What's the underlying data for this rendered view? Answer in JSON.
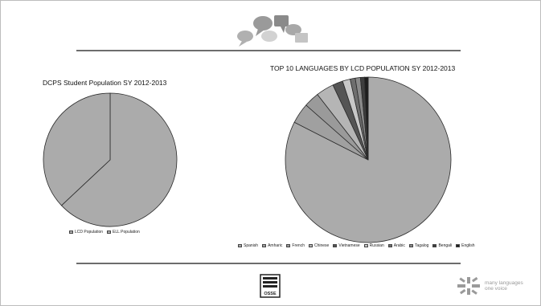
{
  "charts": {
    "chart_data": [
      {
        "type": "pie",
        "title": "DCPS Student Population SY 2012-2013",
        "categories": [
          "LCD Population",
          "ELL Population"
        ],
        "values": [
          63,
          37
        ],
        "colors": [
          "#ababab",
          "#ababab"
        ],
        "legend": "bottom"
      },
      {
        "type": "pie",
        "title": "TOP 10 LANGUAGES BY LCD POPULATION SY 2012-2013",
        "categories": [
          "Spanish",
          "Amharic",
          "French",
          "Chinese",
          "Vietnamese",
          "Russian",
          "Arabic",
          "Tagalog",
          "Bengali",
          "English"
        ],
        "values": [
          82.5,
          4.0,
          3.0,
          3.5,
          2.0,
          1.5,
          1.0,
          1.0,
          0.8,
          0.7
        ],
        "colors": [
          "#ababab",
          "#a0a0a0",
          "#9a9a9a",
          "#b5b5b5",
          "#555555",
          "#c8c8c8",
          "#6e6e6e",
          "#8a8a8a",
          "#3e3e3e",
          "#1e1e1e"
        ],
        "legend": "bottom"
      }
    ]
  },
  "footer": {
    "logo_text": "many languages\none voice",
    "badge_text": "OSSE"
  },
  "style": {
    "slice_stroke": "#2a2a2a"
  }
}
